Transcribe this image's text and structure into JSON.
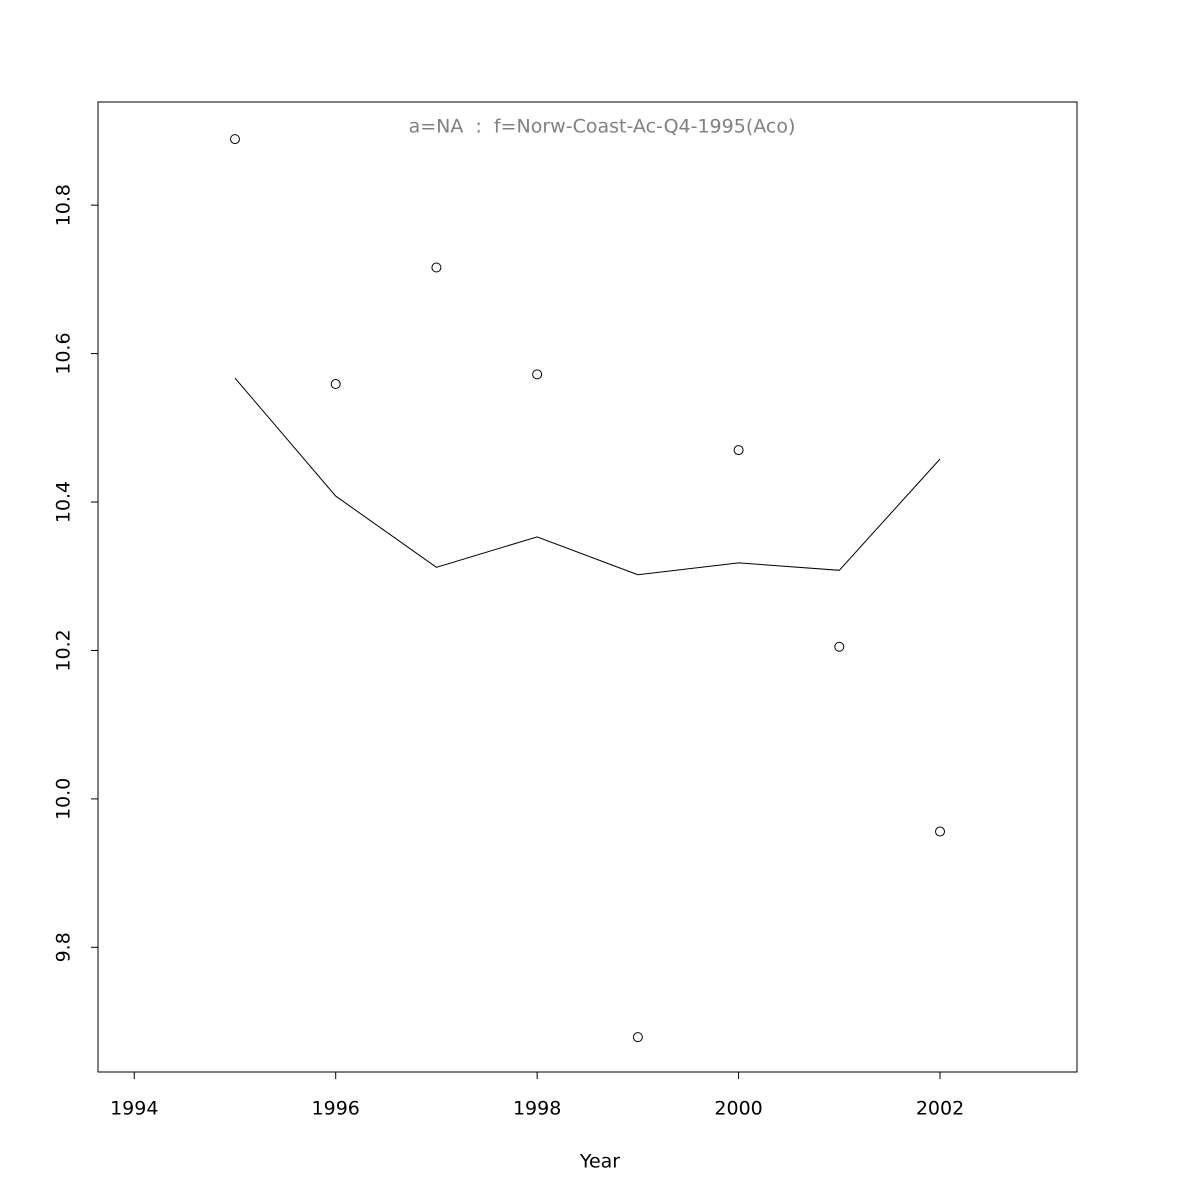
{
  "chart_data": {
    "type": "scatter",
    "title": "a=NA  :  f=Norw-Coast-Ac-Q4-1995(Aco)",
    "x_label": "Year",
    "x": [
      1995,
      1996,
      1997,
      1998,
      1999,
      2000,
      2001,
      2002
    ],
    "series": [
      {
        "style": "points",
        "color": "#000000",
        "values": [
          10.889,
          10.559,
          10.716,
          10.572,
          9.679,
          10.47,
          10.205,
          9.956
        ]
      },
      {
        "style": "line",
        "color": "#000000",
        "values": [
          10.567,
          10.408,
          10.312,
          10.353,
          10.302,
          10.318,
          10.308,
          10.458
        ]
      }
    ],
    "xlim": [
      1993.64,
      2003.36
    ],
    "xticks": [
      1994,
      1996,
      1998,
      2000,
      2002
    ],
    "ylim": [
      9.632,
      10.939
    ],
    "yticks": [
      9.8,
      {
        "value": 10,
        "label": "10.0"
      },
      10.2,
      10.4,
      10.6,
      10.8
    ],
    "title_color": "#808080"
  }
}
